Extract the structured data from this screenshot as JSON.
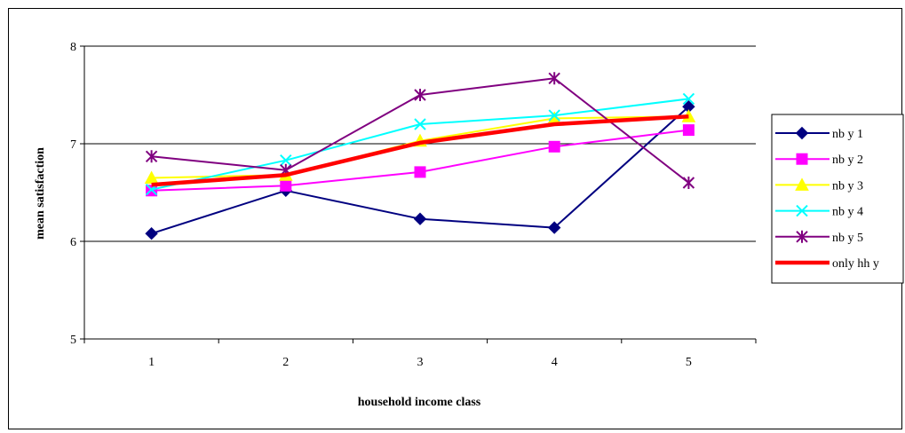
{
  "chart_data": {
    "type": "line",
    "xlabel": "household income class",
    "ylabel": "mean satisfaction",
    "categories": [
      "1",
      "2",
      "3",
      "4",
      "5"
    ],
    "ylim": [
      5,
      8
    ],
    "yticks": [
      "5",
      "6",
      "7",
      "8"
    ],
    "grid": true,
    "legend_position": "right",
    "series": [
      {
        "name": "nb y 1",
        "color": "#000080",
        "marker": "diamond",
        "values": [
          6.08,
          6.52,
          6.23,
          6.14,
          7.38
        ]
      },
      {
        "name": "nb y 2",
        "color": "#FF00FF",
        "marker": "square",
        "values": [
          6.52,
          6.57,
          6.71,
          6.97,
          7.14
        ]
      },
      {
        "name": "nb y 3",
        "color": "#FFFF00",
        "marker": "triangle",
        "values": [
          6.65,
          6.68,
          7.03,
          7.26,
          7.28
        ]
      },
      {
        "name": "nb y 4",
        "color": "#00FFFF",
        "marker": "x",
        "values": [
          6.53,
          6.83,
          7.2,
          7.29,
          7.46
        ]
      },
      {
        "name": "nb y 5",
        "color": "#800080",
        "marker": "star",
        "values": [
          6.87,
          6.73,
          7.5,
          7.67,
          6.6
        ]
      },
      {
        "name": "only hh y",
        "color": "#FF0000",
        "marker": "none",
        "thick": true,
        "values": [
          6.58,
          6.68,
          7.01,
          7.2,
          7.28
        ]
      }
    ]
  }
}
